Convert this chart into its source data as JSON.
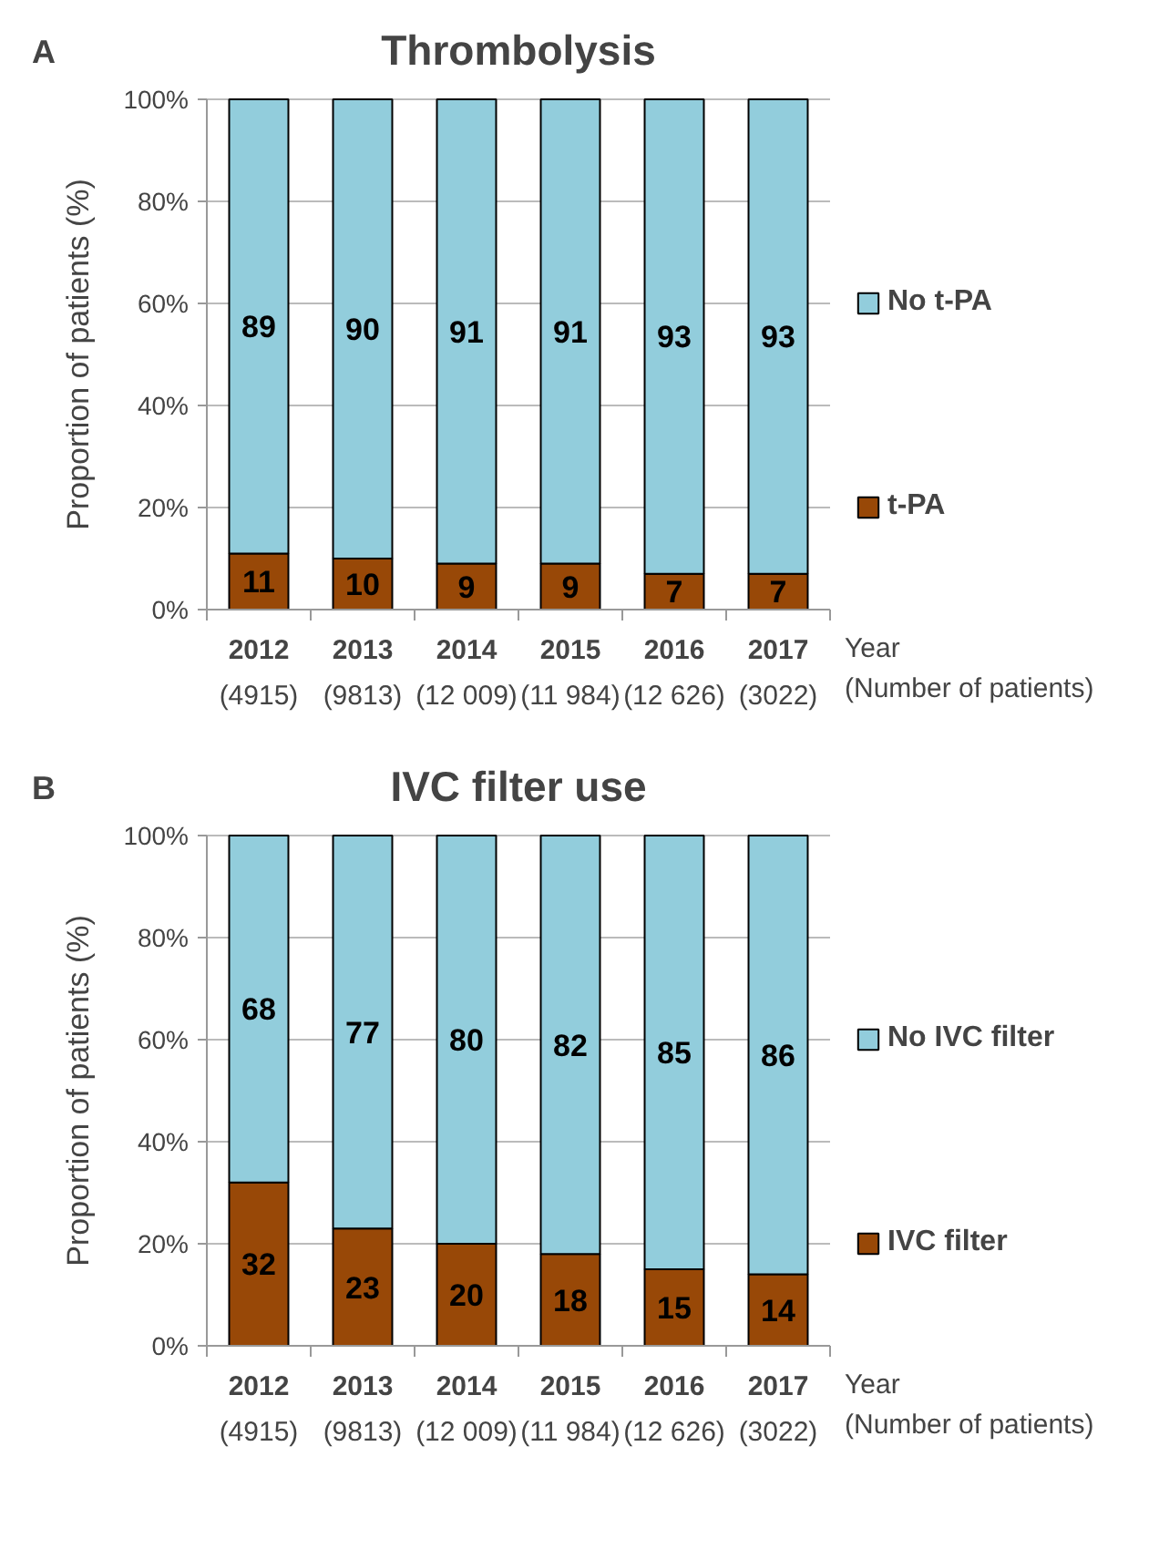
{
  "chart_data": [
    {
      "type": "bar",
      "stacked": true,
      "title": "Thrombolysis",
      "annotations": [
        "A"
      ],
      "ylabel": "Proportion of patients (%)",
      "xlabel": "Year\n(Number of patients)",
      "categories": [
        "2012\n(4915)",
        "2013\n(9813)",
        "2014\n(12 009)",
        "2015\n(11 984)",
        "2016\n(12 626)",
        "2017\n(3022)"
      ],
      "series": [
        {
          "name": "t-PA",
          "color": "#984807",
          "values": [
            11,
            10,
            9,
            9,
            7,
            7
          ]
        },
        {
          "name": "No t-PA",
          "color": "#92cddc",
          "values": [
            89,
            90,
            91,
            91,
            93,
            93
          ]
        }
      ],
      "ylim": [
        0,
        100
      ],
      "yticks": [
        {
          "value": 0,
          "label": "0%"
        },
        {
          "value": 20,
          "label": "20%"
        },
        {
          "value": 40,
          "label": "40%"
        },
        {
          "value": 60,
          "label": "60%"
        },
        {
          "value": 80,
          "label": "80%"
        },
        {
          "value": 100,
          "label": "100%"
        }
      ],
      "grid": "y",
      "legend": "right",
      "data_labels": true
    },
    {
      "type": "bar",
      "stacked": true,
      "title": "IVC filter use",
      "annotations": [
        "B"
      ],
      "ylabel": "Proportion of patients (%)",
      "xlabel": "Year\n(Number of patients)",
      "categories": [
        "2012\n(4915)",
        "2013\n(9813)",
        "2014\n(12 009)",
        "2015\n(11 984)",
        "2016\n(12 626)",
        "2017\n(3022)"
      ],
      "series": [
        {
          "name": "IVC filter",
          "color": "#984807",
          "values": [
            32,
            23,
            20,
            18,
            15,
            14
          ]
        },
        {
          "name": "No IVC filter",
          "color": "#92cddc",
          "values": [
            68,
            77,
            80,
            82,
            85,
            86
          ]
        }
      ],
      "ylim": [
        0,
        100
      ],
      "yticks": [
        {
          "value": 0,
          "label": "0%"
        },
        {
          "value": 20,
          "label": "20%"
        },
        {
          "value": 40,
          "label": "40%"
        },
        {
          "value": 60,
          "label": "60%"
        },
        {
          "value": 80,
          "label": "80%"
        },
        {
          "value": 100,
          "label": "100%"
        }
      ],
      "grid": "y",
      "legend": "right",
      "data_labels": true
    }
  ]
}
